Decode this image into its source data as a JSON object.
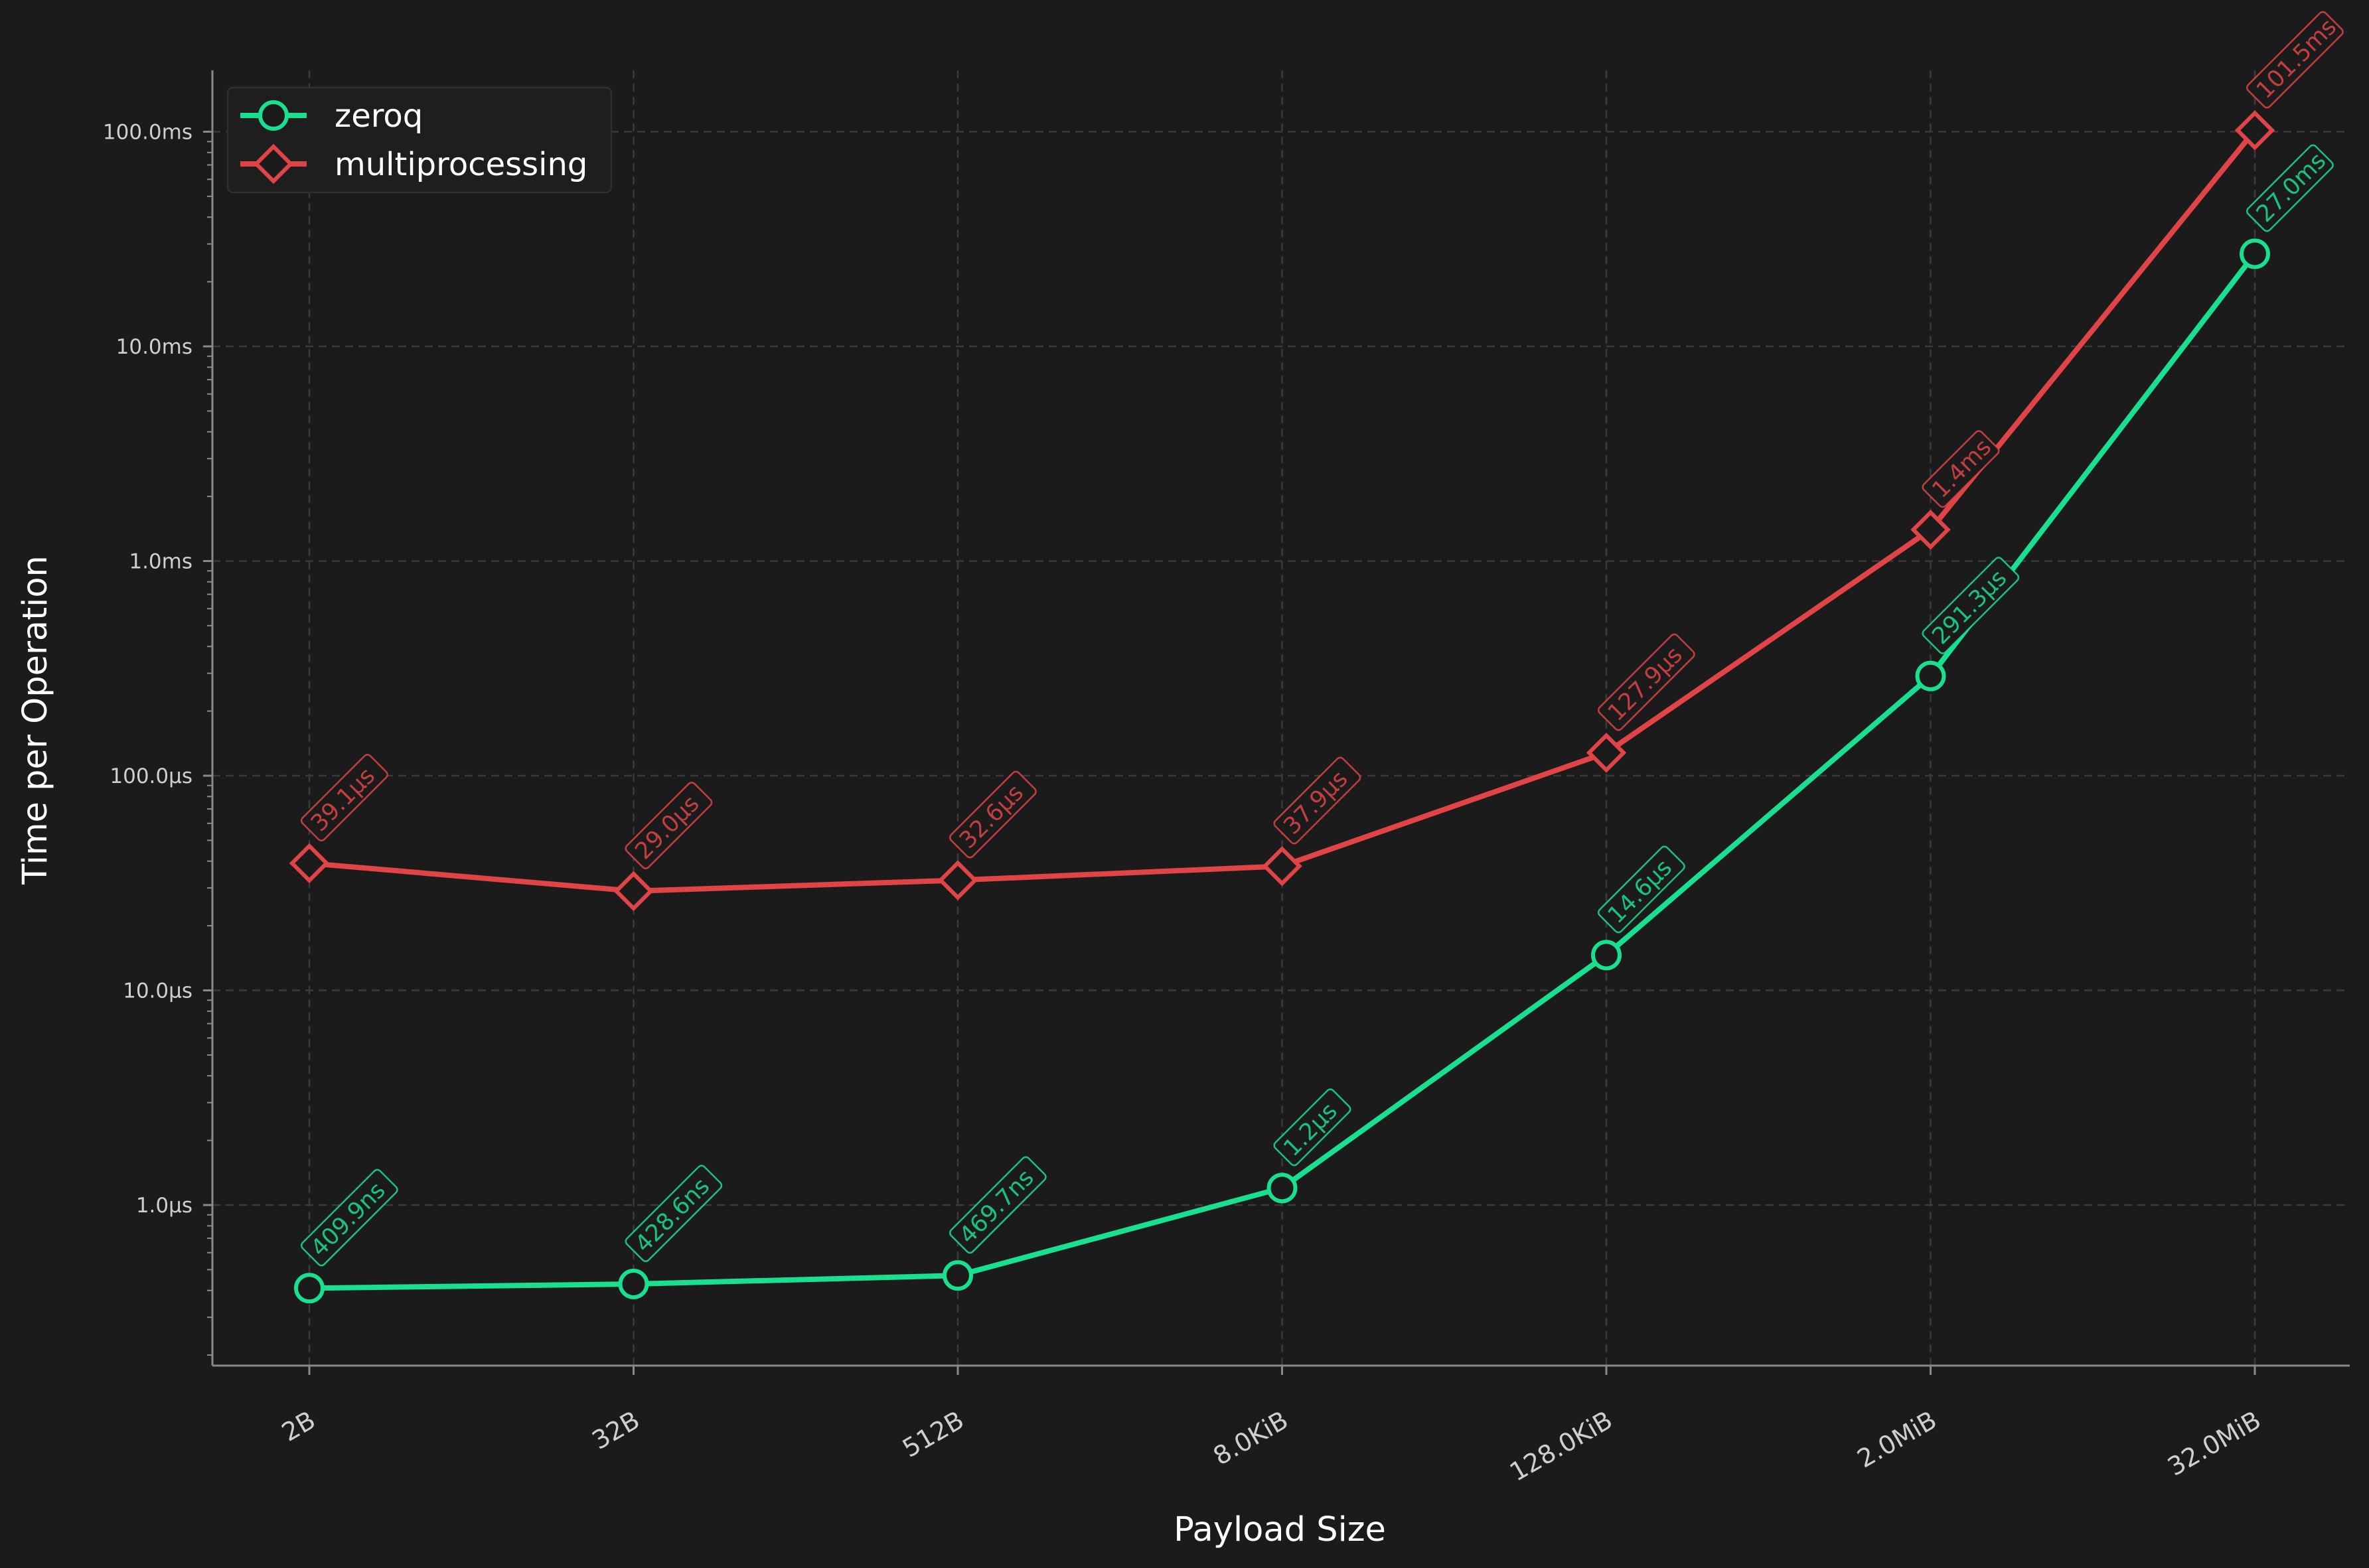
{
  "chart_data": {
    "type": "line",
    "title": "",
    "xlabel": "Payload Size",
    "ylabel": "Time per Operation",
    "categories": [
      "2B",
      "32B",
      "512B",
      "8.0KiB",
      "128.0KiB",
      "2.0MiB",
      "32.0MiB"
    ],
    "y_scale": "log",
    "y_unit": "ms",
    "ylim": [
      0.00017,
      180
    ],
    "y_ticks": [
      {
        "value": 0.001,
        "label": "1.0µs"
      },
      {
        "value": 0.01,
        "label": "10.0µs"
      },
      {
        "value": 0.1,
        "label": "100.0µs"
      },
      {
        "value": 1,
        "label": "1.0ms"
      },
      {
        "value": 10,
        "label": "10.0ms"
      },
      {
        "value": 100,
        "label": "100.0ms"
      }
    ],
    "grid": true,
    "legend_position": "top-left",
    "series": [
      {
        "name": "zeroq",
        "color": "#19e08f",
        "marker": "circle",
        "values": [
          0.0004099,
          0.0004286,
          0.0004697,
          0.0012,
          0.0146,
          0.2913,
          27.0
        ],
        "labels": [
          "409.9ns",
          "428.6ns",
          "469.7ns",
          "1.2µs",
          "14.6µs",
          "291.3µs",
          "27.0ms"
        ]
      },
      {
        "name": "multiprocessing",
        "color": "#e04447",
        "marker": "diamond",
        "values": [
          0.0391,
          0.029,
          0.0326,
          0.0379,
          0.1279,
          1.4,
          101.5
        ],
        "labels": [
          "39.1µs",
          "29.0µs",
          "32.6µs",
          "37.9µs",
          "127.9µs",
          "1.4ms",
          "101.5ms"
        ]
      }
    ]
  }
}
